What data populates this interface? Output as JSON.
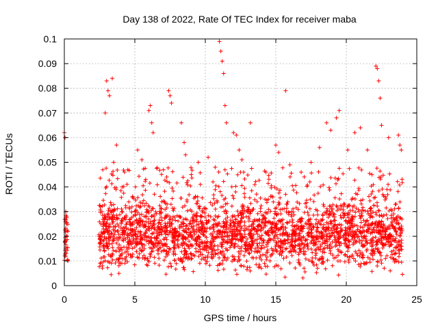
{
  "chart_data": {
    "type": "scatter",
    "title": "Day 138 of 2022, Rate Of TEC Index for receiver maba",
    "xlabel": "GPS time / hours",
    "ylabel": "ROTI / TECUs",
    "xlim": [
      0,
      25
    ],
    "ylim": [
      0,
      0.1
    ],
    "xticks": [
      "0",
      "5",
      "10",
      "15",
      "20",
      "25"
    ],
    "yticks": [
      "0",
      "0.01",
      "0.02",
      "0.03",
      "0.04",
      "0.05",
      "0.06",
      "0.07",
      "0.08",
      "0.09",
      "0.1"
    ],
    "grid": true,
    "marker": "plus",
    "color": "#ff0000",
    "series": [
      {
        "x": [
          0.0,
          0.05,
          0.1,
          0.15,
          0.2,
          0.25,
          0.05,
          0.15,
          0.25,
          0.1,
          2.6,
          2.9,
          3.0,
          3.1,
          3.2,
          3.4,
          3.5,
          3.7,
          4.1,
          4.5,
          5.2,
          5.5,
          6.0,
          6.1,
          6.2,
          6.3,
          7.4,
          7.5,
          7.6,
          8.3,
          8.5,
          8.6,
          9.0,
          9.5,
          10.2,
          10.7,
          11.0,
          11.1,
          11.2,
          11.3,
          11.4,
          11.5,
          12.0,
          12.2,
          12.4,
          12.6,
          13.2,
          14.3,
          15.0,
          15.2,
          15.7,
          16.0,
          16.8,
          17.5,
          18.1,
          18.6,
          18.9,
          19.3,
          19.5,
          20.1,
          20.6,
          21.0,
          21.5,
          22.1,
          22.2,
          22.3,
          22.4,
          22.5,
          23.0,
          23.7,
          23.8,
          23.9
        ],
        "y": [
          0.062,
          0.06,
          0.03,
          0.025,
          0.02,
          0.01,
          0.018,
          0.028,
          0.022,
          0.015,
          0.025,
          0.07,
          0.083,
          0.079,
          0.077,
          0.084,
          0.05,
          0.057,
          0.04,
          0.047,
          0.055,
          0.051,
          0.071,
          0.073,
          0.066,
          0.062,
          0.079,
          0.077,
          0.074,
          0.066,
          0.058,
          0.053,
          0.045,
          0.05,
          0.052,
          0.048,
          0.099,
          0.095,
          0.091,
          0.086,
          0.073,
          0.066,
          0.062,
          0.061,
          0.055,
          0.051,
          0.066,
          0.046,
          0.057,
          0.054,
          0.079,
          0.049,
          0.046,
          0.05,
          0.056,
          0.066,
          0.063,
          0.068,
          0.071,
          0.055,
          0.062,
          0.064,
          0.055,
          0.089,
          0.088,
          0.083,
          0.076,
          0.065,
          0.06,
          0.061,
          0.057,
          0.055
        ]
      }
    ]
  }
}
